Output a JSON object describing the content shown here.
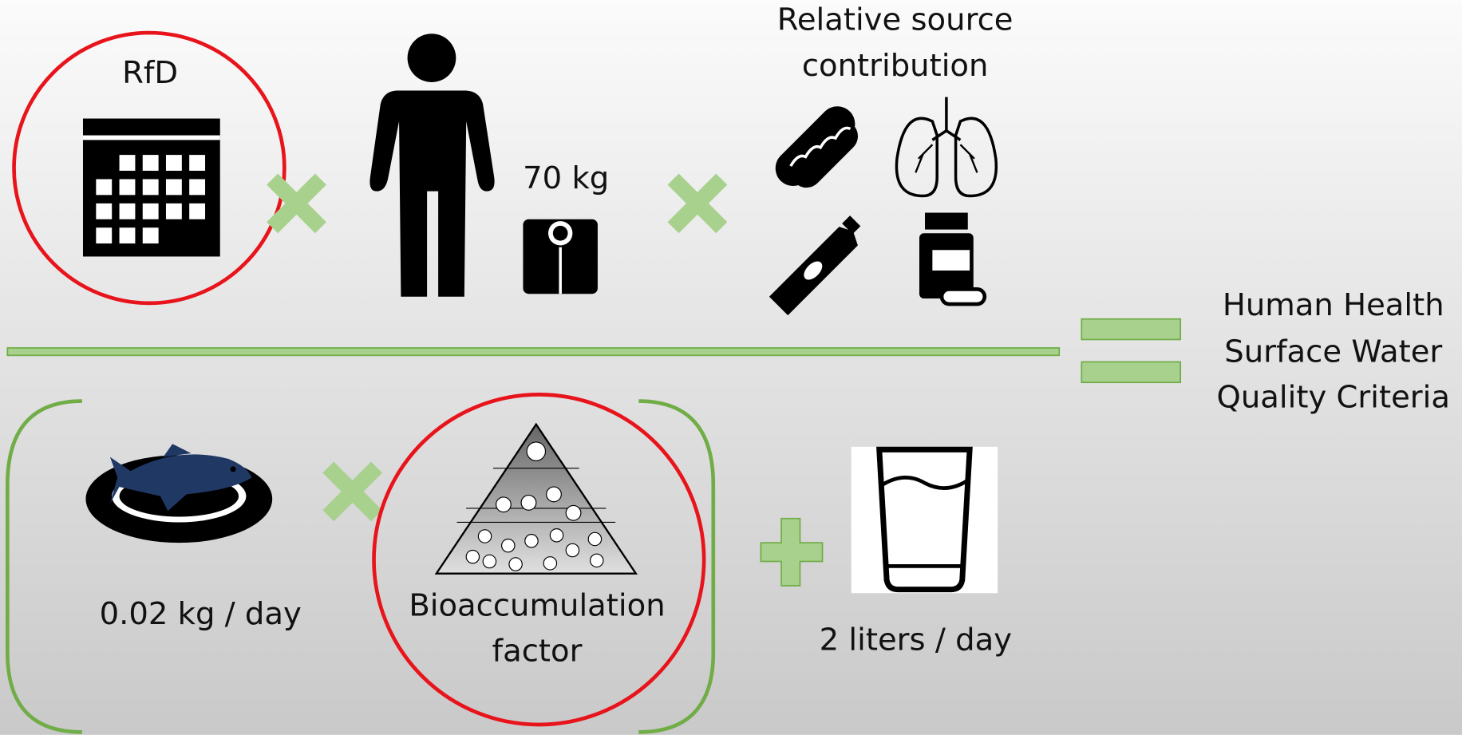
{
  "labels": {
    "rfd": "RfD",
    "body_weight": "70 kg",
    "relative_source": [
      "Relative source",
      "contribution"
    ],
    "result": [
      "Human Health",
      "Surface Water",
      "Quality Criteria"
    ],
    "fish_intake": "0.02 kg / day",
    "bioaccumulation": [
      "Bioaccumulation",
      "factor"
    ],
    "water_intake": "2 liters / day"
  }
}
